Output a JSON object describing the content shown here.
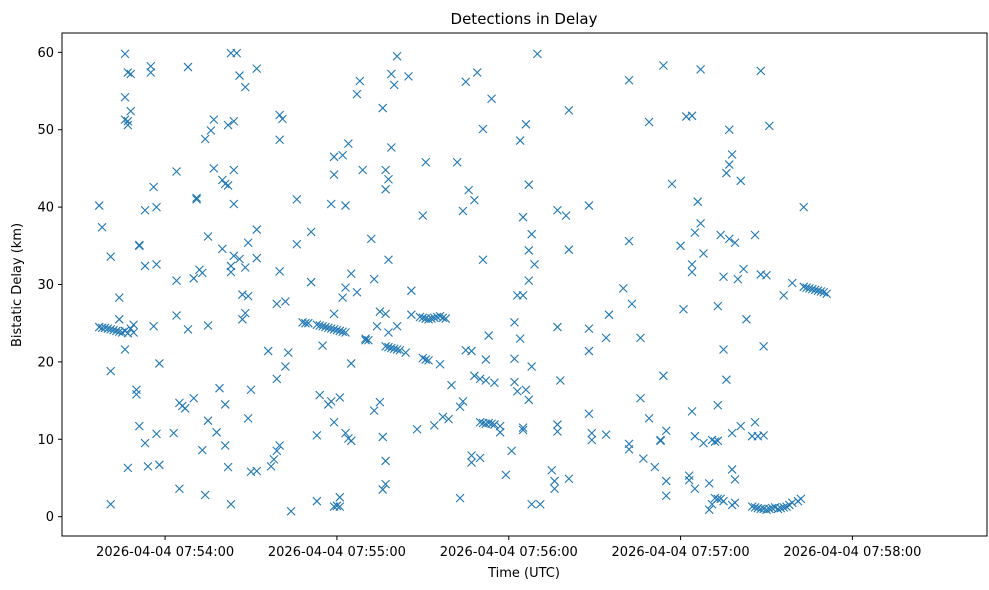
{
  "chart_data": {
    "type": "scatter",
    "title": "Detections in Delay",
    "xlabel": "Time (UTC)",
    "ylabel": "Bistatic Delay (km)",
    "marker": "x",
    "color": "#1f77b4",
    "x_unit": "seconds",
    "x_ticks": [
      {
        "t": 0,
        "label": "2026-04-04 07:54:00"
      },
      {
        "t": 60,
        "label": "2026-04-04 07:55:00"
      },
      {
        "t": 120,
        "label": "2026-04-04 07:56:00"
      },
      {
        "t": 180,
        "label": "2026-04-04 07:57:00"
      },
      {
        "t": 240,
        "label": "2026-04-04 07:58:00"
      }
    ],
    "y_ticks": [
      0,
      10,
      20,
      30,
      40,
      50,
      60
    ],
    "xlim": [
      -36,
      287
    ],
    "ylim": [
      -2.5,
      62.5
    ],
    "grid": false,
    "points": [
      [
        -23,
        40.2
      ],
      [
        -22,
        37.4
      ],
      [
        -23,
        24.5
      ],
      [
        -22,
        24.4
      ],
      [
        -21,
        24.4
      ],
      [
        -20,
        24.3
      ],
      [
        -19,
        24.2
      ],
      [
        -18,
        24.1
      ],
      [
        -17,
        24.0
      ],
      [
        -16,
        23.9
      ],
      [
        -15,
        23.8
      ],
      [
        -14,
        24.0
      ],
      [
        -13,
        23.7
      ],
      [
        -12,
        24.3
      ],
      [
        -11,
        23.8
      ],
      [
        -19,
        33.6
      ],
      [
        -19,
        18.8
      ],
      [
        -19,
        1.6
      ],
      [
        -16,
        25.5
      ],
      [
        -16,
        28.3
      ],
      [
        -14,
        21.6
      ],
      [
        -13,
        6.3
      ],
      [
        -12,
        52.4
      ],
      [
        -11,
        24.8
      ],
      [
        -14,
        59.8
      ],
      [
        -13,
        57.4
      ],
      [
        -12,
        57.2
      ],
      [
        -14,
        54.2
      ],
      [
        -14,
        51.3
      ],
      [
        -13,
        51.1
      ],
      [
        -13,
        50.6
      ],
      [
        -10,
        15.8
      ],
      [
        -10,
        16.4
      ],
      [
        -9,
        35.0
      ],
      [
        -9,
        35.1
      ],
      [
        -9,
        11.7
      ],
      [
        -7,
        9.5
      ],
      [
        -7,
        39.6
      ],
      [
        -7,
        32.4
      ],
      [
        -6,
        6.5
      ],
      [
        -5,
        58.2
      ],
      [
        -5,
        57.4
      ],
      [
        -4,
        42.6
      ],
      [
        -4,
        24.6
      ],
      [
        -3,
        10.7
      ],
      [
        -3,
        40.0
      ],
      [
        -3,
        32.6
      ],
      [
        -2,
        19.8
      ],
      [
        -2,
        6.7
      ],
      [
        3,
        10.8
      ],
      [
        4,
        44.6
      ],
      [
        4,
        30.5
      ],
      [
        4,
        26.0
      ],
      [
        5,
        14.7
      ],
      [
        5,
        3.6
      ],
      [
        6,
        14.3
      ],
      [
        7,
        14.0
      ],
      [
        8,
        24.2
      ],
      [
        8,
        58.1
      ],
      [
        10,
        30.8
      ],
      [
        10,
        15.3
      ],
      [
        11,
        41.2
      ],
      [
        11,
        41.0
      ],
      [
        12,
        31.9
      ],
      [
        13,
        31.5
      ],
      [
        13,
        8.6
      ],
      [
        14,
        48.8
      ],
      [
        14,
        2.8
      ],
      [
        15,
        36.2
      ],
      [
        15,
        24.7
      ],
      [
        15,
        12.4
      ],
      [
        16,
        49.9
      ],
      [
        17,
        51.3
      ],
      [
        17,
        45.0
      ],
      [
        18,
        10.9
      ],
      [
        19,
        16.6
      ],
      [
        20,
        43.5
      ],
      [
        20,
        34.6
      ],
      [
        21,
        43.0
      ],
      [
        21,
        14.5
      ],
      [
        21,
        9.2
      ],
      [
        22,
        42.8
      ],
      [
        22,
        6.4
      ],
      [
        22,
        50.6
      ],
      [
        23,
        59.9
      ],
      [
        23,
        31.6
      ],
      [
        23,
        32.4
      ],
      [
        23,
        1.6
      ],
      [
        24,
        33.7
      ],
      [
        24,
        44.8
      ],
      [
        24,
        40.4
      ],
      [
        24,
        51.1
      ],
      [
        25,
        59.9
      ],
      [
        26,
        33.3
      ],
      [
        26,
        57.0
      ],
      [
        27,
        28.7
      ],
      [
        27,
        25.5
      ],
      [
        28,
        55.5
      ],
      [
        28,
        32.2
      ],
      [
        28,
        26.3
      ],
      [
        29,
        35.4
      ],
      [
        29,
        28.5
      ],
      [
        29,
        12.7
      ],
      [
        30,
        16.4
      ],
      [
        30,
        5.8
      ],
      [
        32,
        5.9
      ],
      [
        32,
        37.1
      ],
      [
        32,
        33.4
      ],
      [
        32,
        57.9
      ],
      [
        36,
        21.4
      ],
      [
        37,
        6.5
      ],
      [
        38,
        7.4
      ],
      [
        39,
        8.5
      ],
      [
        39,
        17.8
      ],
      [
        39,
        27.5
      ],
      [
        40,
        9.2
      ],
      [
        40,
        31.7
      ],
      [
        40,
        48.7
      ],
      [
        40,
        51.9
      ],
      [
        41,
        51.4
      ],
      [
        42,
        27.8
      ],
      [
        42,
        19.4
      ],
      [
        43,
        21.2
      ],
      [
        44,
        0.7
      ],
      [
        46,
        35.2
      ],
      [
        46,
        41.0
      ],
      [
        48,
        25.1
      ],
      [
        49,
        25.0
      ],
      [
        50,
        25.0
      ],
      [
        51,
        36.8
      ],
      [
        51,
        30.3
      ],
      [
        53,
        24.8
      ],
      [
        54,
        24.7
      ],
      [
        55,
        24.6
      ],
      [
        56,
        24.5
      ],
      [
        57,
        24.4
      ],
      [
        58,
        24.3
      ],
      [
        59,
        24.2
      ],
      [
        60,
        24.1
      ],
      [
        61,
        24.0
      ],
      [
        62,
        23.9
      ],
      [
        63,
        23.8
      ],
      [
        53,
        10.5
      ],
      [
        53,
        2.0
      ],
      [
        54,
        15.7
      ],
      [
        55,
        22.1
      ],
      [
        57,
        14.5
      ],
      [
        58,
        14.9
      ],
      [
        58,
        40.4
      ],
      [
        59,
        46.5
      ],
      [
        59,
        44.2
      ],
      [
        59,
        1.3
      ],
      [
        59,
        12.2
      ],
      [
        59,
        26.2
      ],
      [
        60,
        1.4
      ],
      [
        61,
        15.4
      ],
      [
        61,
        2.5
      ],
      [
        61,
        1.3
      ],
      [
        62,
        28.3
      ],
      [
        62,
        46.7
      ],
      [
        63,
        40.2
      ],
      [
        63,
        10.8
      ],
      [
        63,
        29.6
      ],
      [
        64,
        48.2
      ],
      [
        64,
        10.1
      ],
      [
        65,
        31.4
      ],
      [
        65,
        19.8
      ],
      [
        65,
        9.8
      ],
      [
        67,
        29.0
      ],
      [
        67,
        54.6
      ],
      [
        68,
        56.3
      ],
      [
        69,
        44.8
      ],
      [
        70,
        22.8
      ],
      [
        70,
        23.0
      ],
      [
        71,
        22.8
      ],
      [
        72,
        35.9
      ],
      [
        73,
        13.7
      ],
      [
        73,
        30.7
      ],
      [
        74,
        24.6
      ],
      [
        75,
        14.8
      ],
      [
        75,
        26.5
      ],
      [
        76,
        3.5
      ],
      [
        76,
        10.3
      ],
      [
        76,
        52.8
      ],
      [
        77,
        7.2
      ],
      [
        77,
        4.2
      ],
      [
        77,
        42.3
      ],
      [
        77,
        44.8
      ],
      [
        77,
        26.2
      ],
      [
        78,
        43.6
      ],
      [
        78,
        23.8
      ],
      [
        78,
        33.2
      ],
      [
        79,
        47.7
      ],
      [
        79,
        57.2
      ],
      [
        80,
        55.8
      ],
      [
        77,
        22.0
      ],
      [
        78,
        21.9
      ],
      [
        79,
        21.8
      ],
      [
        80,
        21.7
      ],
      [
        81,
        21.6
      ],
      [
        82,
        21.5
      ],
      [
        84,
        21.2
      ],
      [
        81,
        24.6
      ],
      [
        81,
        59.5
      ],
      [
        85,
        56.9
      ],
      [
        86,
        29.2
      ],
      [
        86,
        26.1
      ],
      [
        88,
        11.3
      ],
      [
        89,
        25.8
      ],
      [
        90,
        25.7
      ],
      [
        91,
        25.6
      ],
      [
        92,
        25.5
      ],
      [
        93,
        25.6
      ],
      [
        94,
        25.7
      ],
      [
        95,
        25.8
      ],
      [
        96,
        25.9
      ],
      [
        97,
        25.7
      ],
      [
        98,
        25.6
      ],
      [
        90,
        20.5
      ],
      [
        91,
        20.3
      ],
      [
        92,
        20.2
      ],
      [
        90,
        38.9
      ],
      [
        91,
        45.8
      ],
      [
        94,
        11.8
      ],
      [
        96,
        19.7
      ],
      [
        97,
        12.9
      ],
      [
        99,
        12.6
      ],
      [
        100,
        17.0
      ],
      [
        102,
        45.8
      ],
      [
        103,
        2.4
      ],
      [
        103,
        14.2
      ],
      [
        104,
        39.5
      ],
      [
        104,
        14.9
      ],
      [
        105,
        56.2
      ],
      [
        105,
        21.5
      ],
      [
        106,
        42.2
      ],
      [
        107,
        21.4
      ],
      [
        107,
        7.9
      ],
      [
        107,
        7.0
      ],
      [
        108,
        40.9
      ],
      [
        108,
        18.2
      ],
      [
        109,
        57.4
      ],
      [
        110,
        12.2
      ],
      [
        111,
        12.1
      ],
      [
        112,
        12.0
      ],
      [
        113,
        12.1
      ],
      [
        114,
        12.0
      ],
      [
        115,
        11.9
      ],
      [
        110,
        17.8
      ],
      [
        110,
        7.6
      ],
      [
        111,
        50.1
      ],
      [
        111,
        33.2
      ],
      [
        112,
        17.6
      ],
      [
        112,
        20.3
      ],
      [
        113,
        23.4
      ],
      [
        114,
        54.0
      ],
      [
        115,
        17.3
      ],
      [
        117,
        11.7
      ],
      [
        117,
        10.9
      ],
      [
        119,
        5.4
      ],
      [
        121,
        8.5
      ],
      [
        122,
        25.1
      ],
      [
        122,
        17.4
      ],
      [
        122,
        20.4
      ],
      [
        123,
        28.6
      ],
      [
        123,
        16.2
      ],
      [
        124,
        23.0
      ],
      [
        124,
        48.6
      ],
      [
        125,
        11.2
      ],
      [
        125,
        11.5
      ],
      [
        125,
        38.7
      ],
      [
        125,
        28.6
      ],
      [
        126,
        50.7
      ],
      [
        126,
        16.4
      ],
      [
        127,
        15.1
      ],
      [
        127,
        30.5
      ],
      [
        127,
        34.4
      ],
      [
        127,
        42.9
      ],
      [
        128,
        36.5
      ],
      [
        128,
        19.4
      ],
      [
        128,
        1.6
      ],
      [
        129,
        32.6
      ],
      [
        130,
        59.8
      ],
      [
        131,
        1.6
      ],
      [
        135,
        6.0
      ],
      [
        136,
        3.6
      ],
      [
        136,
        4.6
      ],
      [
        137,
        11.0
      ],
      [
        137,
        11.9
      ],
      [
        137,
        24.5
      ],
      [
        137,
        39.6
      ],
      [
        138,
        17.6
      ],
      [
        140,
        38.9
      ],
      [
        141,
        34.5
      ],
      [
        141,
        52.5
      ],
      [
        141,
        4.9
      ],
      [
        148,
        40.2
      ],
      [
        148,
        24.3
      ],
      [
        148,
        13.3
      ],
      [
        148,
        21.4
      ],
      [
        149,
        9.9
      ],
      [
        149,
        10.8
      ],
      [
        154,
        10.6
      ],
      [
        154,
        23.1
      ],
      [
        155,
        26.1
      ],
      [
        160,
        29.5
      ],
      [
        162,
        8.7
      ],
      [
        162,
        9.4
      ],
      [
        162,
        56.4
      ],
      [
        162,
        35.6
      ],
      [
        163,
        27.5
      ],
      [
        166,
        15.3
      ],
      [
        166,
        23.1
      ],
      [
        167,
        7.5
      ],
      [
        169,
        51.0
      ],
      [
        169,
        12.7
      ],
      [
        171,
        6.4
      ],
      [
        173,
        9.8
      ],
      [
        173,
        9.9
      ],
      [
        174,
        58.3
      ],
      [
        174,
        18.2
      ],
      [
        175,
        11.1
      ],
      [
        175,
        4.6
      ],
      [
        175,
        2.7
      ],
      [
        177,
        43.0
      ],
      [
        180,
        35.0
      ],
      [
        181,
        26.8
      ],
      [
        182,
        51.7
      ],
      [
        183,
        5.3
      ],
      [
        183,
        4.7
      ],
      [
        184,
        13.6
      ],
      [
        184,
        31.6
      ],
      [
        184,
        32.6
      ],
      [
        184,
        51.8
      ],
      [
        185,
        10.4
      ],
      [
        185,
        36.7
      ],
      [
        185,
        3.6
      ],
      [
        186,
        40.7
      ],
      [
        187,
        57.8
      ],
      [
        187,
        37.9
      ],
      [
        188,
        9.5
      ],
      [
        188,
        34.0
      ],
      [
        190,
        4.3
      ],
      [
        190,
        0.9
      ],
      [
        191,
        1.6
      ],
      [
        191,
        9.9
      ],
      [
        192,
        9.7
      ],
      [
        192,
        2.4
      ],
      [
        193,
        9.8
      ],
      [
        193,
        2.3
      ],
      [
        194,
        2.3
      ],
      [
        193,
        14.4
      ],
      [
        193,
        27.2
      ],
      [
        194,
        36.4
      ],
      [
        195,
        31.0
      ],
      [
        195,
        21.6
      ],
      [
        195,
        2.0
      ],
      [
        196,
        17.7
      ],
      [
        196,
        44.4
      ],
      [
        197,
        45.5
      ],
      [
        197,
        35.9
      ],
      [
        197,
        50.0
      ],
      [
        198,
        46.8
      ],
      [
        198,
        10.8
      ],
      [
        198,
        6.1
      ],
      [
        198,
        1.5
      ],
      [
        199,
        1.8
      ],
      [
        199,
        35.4
      ],
      [
        199,
        4.8
      ],
      [
        200,
        30.7
      ],
      [
        201,
        11.7
      ],
      [
        201,
        43.4
      ],
      [
        202,
        32.0
      ],
      [
        203,
        25.5
      ],
      [
        205,
        1.3
      ],
      [
        206,
        1.2
      ],
      [
        207,
        1.1
      ],
      [
        208,
        1.0
      ],
      [
        209,
        1.0
      ],
      [
        210,
        0.9
      ],
      [
        211,
        1.0
      ],
      [
        212,
        1.1
      ],
      [
        213,
        1.2
      ],
      [
        205,
        10.4
      ],
      [
        206,
        12.2
      ],
      [
        206,
        36.4
      ],
      [
        207,
        10.4
      ],
      [
        208,
        57.6
      ],
      [
        208,
        31.3
      ],
      [
        209,
        10.5
      ],
      [
        209,
        22.0
      ],
      [
        210,
        31.2
      ],
      [
        211,
        50.5
      ],
      [
        214,
        1.0
      ],
      [
        215,
        1.1
      ],
      [
        216,
        1.2
      ],
      [
        217,
        1.3
      ],
      [
        218,
        1.5
      ],
      [
        219,
        1.8
      ],
      [
        221,
        2.0
      ],
      [
        222,
        2.3
      ],
      [
        216,
        28.6
      ],
      [
        219,
        30.2
      ],
      [
        223,
        40.0
      ],
      [
        223,
        29.7
      ],
      [
        224,
        29.6
      ],
      [
        225,
        29.5
      ],
      [
        226,
        29.4
      ],
      [
        227,
        29.3
      ],
      [
        228,
        29.2
      ],
      [
        229,
        29.1
      ],
      [
        230,
        29.0
      ],
      [
        231,
        28.8
      ]
    ]
  }
}
